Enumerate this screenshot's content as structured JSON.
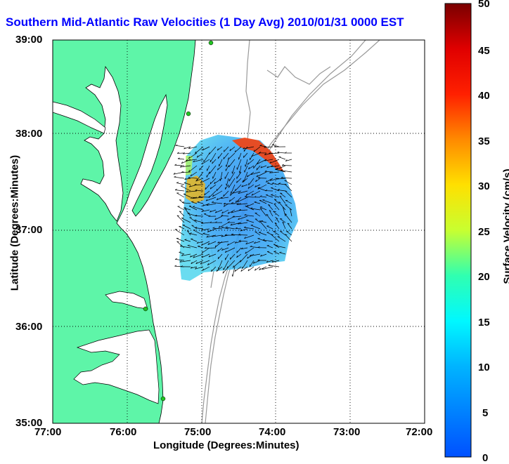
{
  "title": "Southern Mid-Atlantic Raw Velocities (1 Day Avg) 2010/01/31 0000 EST",
  "xlabel": "Longitude (Degrees:Minutes)",
  "ylabel": "Latitude (Degrees:Minutes)",
  "colorbar_label": "Surface Velocity (cm/s)",
  "x_ticks": [
    "77:00",
    "76:00",
    "75:00",
    "74:00",
    "73:00",
    "72:00"
  ],
  "y_ticks": [
    "39:00",
    "38:00",
    "37:00",
    "36:00",
    "35:00"
  ],
  "colorbar_ticks": [
    "50",
    "45",
    "40",
    "35",
    "30",
    "25",
    "20",
    "15",
    "10",
    "5",
    "0"
  ],
  "colors": {
    "land": "#5ef5a8",
    "title": "#0000ff",
    "ocean": "#ffffff",
    "bathymetry": "#999999",
    "station": "#22c422"
  }
}
